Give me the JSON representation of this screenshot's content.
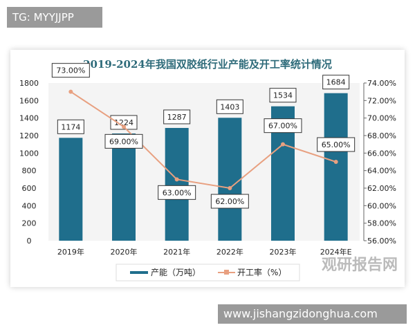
{
  "header_tag": "TG: MYYJJPP",
  "footer_tag": "www.jishangzidonghua.com",
  "watermark": "观研报告网",
  "chart_data": {
    "type": "bar+line",
    "title": "2019-2024年我国双胶纸行业产能及开工率统计情况",
    "categories": [
      "2019年",
      "2020年",
      "2021年",
      "2022年",
      "2023年",
      "2024年E"
    ],
    "series": [
      {
        "name": "产能（万吨）",
        "type": "bar",
        "axis": "left",
        "values": [
          1174,
          1224,
          1287,
          1403,
          1534,
          1684
        ],
        "labels": [
          "1174",
          "1224",
          "1287",
          "1403",
          "1534",
          "1684"
        ],
        "color": "#1f6e8c"
      },
      {
        "name": "开工率（%）",
        "type": "line",
        "axis": "right",
        "values": [
          73,
          69,
          63,
          62,
          67,
          65
        ],
        "labels": [
          "73.00%",
          "69.00%",
          "63.00%",
          "62.00%",
          "67.00%",
          "65.00%"
        ],
        "color": "#e8a080"
      }
    ],
    "ylim_left": [
      0,
      1800
    ],
    "yticks_left": [
      "0",
      "200",
      "400",
      "600",
      "800",
      "1000",
      "1200",
      "1400",
      "1600",
      "1800"
    ],
    "ylim_right": [
      56,
      74
    ],
    "yticks_right": [
      "56.00%",
      "58.00%",
      "60.00%",
      "62.00%",
      "64.00%",
      "66.00%",
      "68.00%",
      "70.00%",
      "72.00%",
      "74.00%"
    ],
    "legend": "bottom"
  }
}
